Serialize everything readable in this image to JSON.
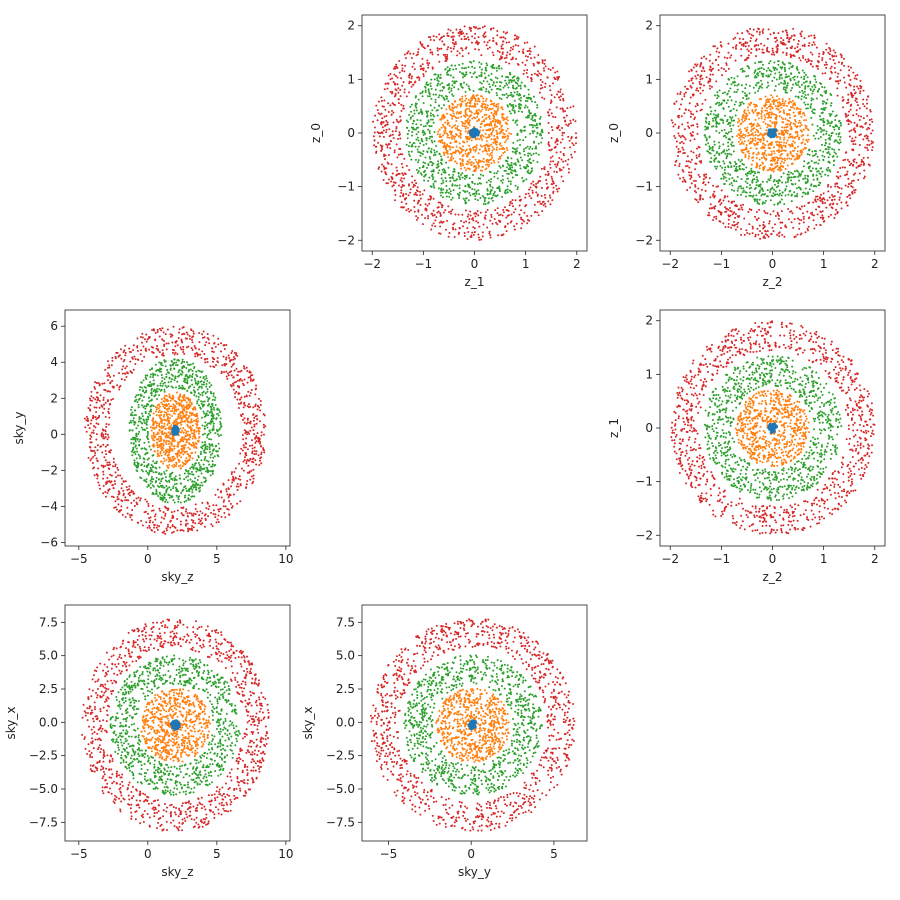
{
  "chart_data": [
    {
      "type": "scatter",
      "xlabel": "z_1",
      "ylabel": "z_0",
      "xlim": [
        -2.2,
        2.2
      ],
      "ylim": [
        -2.2,
        2.2
      ],
      "xticks": [
        -2,
        -1,
        0,
        1,
        2
      ],
      "yticks": [
        -2,
        -1,
        0,
        1,
        2
      ],
      "center": [
        0,
        0
      ],
      "series": [
        {
          "color": "#1f77b4",
          "radius": [
            0,
            0.08
          ],
          "scale": [
            1,
            1
          ],
          "count": 30
        },
        {
          "color": "#ff7f0e",
          "radius": [
            0,
            0.72
          ],
          "scale": [
            1,
            1
          ],
          "count": 650
        },
        {
          "color": "#2ca02c",
          "radius": [
            0.78,
            1.35
          ],
          "scale": [
            1,
            1
          ],
          "count": 900
        },
        {
          "color": "#d62728",
          "radius": [
            1.45,
            2.0
          ],
          "scale": [
            1,
            1
          ],
          "count": 1000
        }
      ]
    },
    {
      "type": "scatter",
      "xlabel": "z_2",
      "ylabel": "z_0",
      "xlim": [
        -2.2,
        2.2
      ],
      "ylim": [
        -2.2,
        2.2
      ],
      "xticks": [
        -2,
        -1,
        0,
        1,
        2
      ],
      "yticks": [
        -2,
        -1,
        0,
        1,
        2
      ],
      "center": [
        0,
        0
      ],
      "series": [
        {
          "color": "#1f77b4",
          "radius": [
            0,
            0.08
          ],
          "scale": [
            1,
            1
          ],
          "count": 30
        },
        {
          "color": "#ff7f0e",
          "radius": [
            0,
            0.72
          ],
          "scale": [
            1,
            1
          ],
          "count": 650
        },
        {
          "color": "#2ca02c",
          "radius": [
            0.78,
            1.35
          ],
          "scale": [
            1,
            1
          ],
          "count": 900
        },
        {
          "color": "#d62728",
          "radius": [
            1.45,
            2.0
          ],
          "scale": [
            1,
            1
          ],
          "count": 1000
        }
      ]
    },
    {
      "type": "scatter",
      "xlabel": "sky_z",
      "ylabel": "sky_y",
      "xlim": [
        -6,
        10.3
      ],
      "ylim": [
        -6.2,
        6.9
      ],
      "xticks": [
        -5,
        0,
        5,
        10
      ],
      "yticks": [
        -6,
        -4,
        -2,
        0,
        2,
        4,
        6
      ],
      "center": [
        2,
        0.2
      ],
      "series": [
        {
          "color": "#1f77b4",
          "radius": [
            0,
            0.08
          ],
          "scale": [
            2.5,
            3.0
          ],
          "count": 30
        },
        {
          "color": "#ff7f0e",
          "radius": [
            0,
            0.72
          ],
          "scale": [
            2.5,
            3.0
          ],
          "count": 650
        },
        {
          "color": "#2ca02c",
          "radius": [
            0.78,
            1.35
          ],
          "scale": [
            2.5,
            3.0
          ],
          "count": 900
        },
        {
          "color": "#d62728",
          "radius": [
            1.45,
            2.0
          ],
          "scale": [
            3.3,
            2.9
          ],
          "count": 1000
        }
      ]
    },
    {
      "type": "scatter",
      "xlabel": "z_2",
      "ylabel": "z_1",
      "xlim": [
        -2.2,
        2.2
      ],
      "ylim": [
        -2.2,
        2.2
      ],
      "xticks": [
        -2,
        -1,
        0,
        1,
        2
      ],
      "yticks": [
        -2,
        -1,
        0,
        1,
        2
      ],
      "center": [
        0,
        0
      ],
      "series": [
        {
          "color": "#1f77b4",
          "radius": [
            0,
            0.08
          ],
          "scale": [
            1,
            1
          ],
          "count": 30
        },
        {
          "color": "#ff7f0e",
          "radius": [
            0,
            0.72
          ],
          "scale": [
            1,
            1
          ],
          "count": 650
        },
        {
          "color": "#2ca02c",
          "radius": [
            0.78,
            1.35
          ],
          "scale": [
            1,
            1
          ],
          "count": 900
        },
        {
          "color": "#d62728",
          "radius": [
            1.45,
            2.0
          ],
          "scale": [
            1,
            1
          ],
          "count": 1000
        }
      ]
    },
    {
      "type": "scatter",
      "xlabel": "sky_z",
      "ylabel": "sky_x",
      "xlim": [
        -6,
        10.3
      ],
      "ylim": [
        -8.9,
        8.8
      ],
      "xticks": [
        -5,
        0,
        5,
        10
      ],
      "yticks": [
        -7.5,
        -5.0,
        -2.5,
        0.0,
        2.5,
        5.0,
        7.5
      ],
      "center": [
        2,
        -0.2
      ],
      "series": [
        {
          "color": "#1f77b4",
          "radius": [
            0,
            0.08
          ],
          "scale": [
            3.5,
            3.9
          ],
          "count": 30
        },
        {
          "color": "#ff7f0e",
          "radius": [
            0,
            0.72
          ],
          "scale": [
            3.5,
            3.9
          ],
          "count": 650
        },
        {
          "color": "#2ca02c",
          "radius": [
            0.78,
            1.35
          ],
          "scale": [
            3.5,
            3.9
          ],
          "count": 900
        },
        {
          "color": "#d62728",
          "radius": [
            1.45,
            2.0
          ],
          "scale": [
            3.4,
            4.0
          ],
          "count": 1000
        }
      ]
    },
    {
      "type": "scatter",
      "xlabel": "sky_y",
      "ylabel": "sky_x",
      "xlim": [
        -6.6,
        7.0
      ],
      "ylim": [
        -8.9,
        8.8
      ],
      "xticks": [
        -5,
        0,
        5
      ],
      "yticks": [
        -7.5,
        -5.0,
        -2.5,
        0.0,
        2.5,
        5.0,
        7.5
      ],
      "center": [
        0.1,
        -0.2
      ],
      "series": [
        {
          "color": "#1f77b4",
          "radius": [
            0,
            0.08
          ],
          "scale": [
            3.1,
            3.9
          ],
          "count": 30
        },
        {
          "color": "#ff7f0e",
          "radius": [
            0,
            0.72
          ],
          "scale": [
            3.1,
            3.9
          ],
          "count": 650
        },
        {
          "color": "#2ca02c",
          "radius": [
            0.78,
            1.35
          ],
          "scale": [
            3.1,
            3.9
          ],
          "count": 900
        },
        {
          "color": "#d62728",
          "radius": [
            1.45,
            2.0
          ],
          "scale": [
            3.1,
            4.0
          ],
          "count": 1000
        }
      ]
    }
  ]
}
